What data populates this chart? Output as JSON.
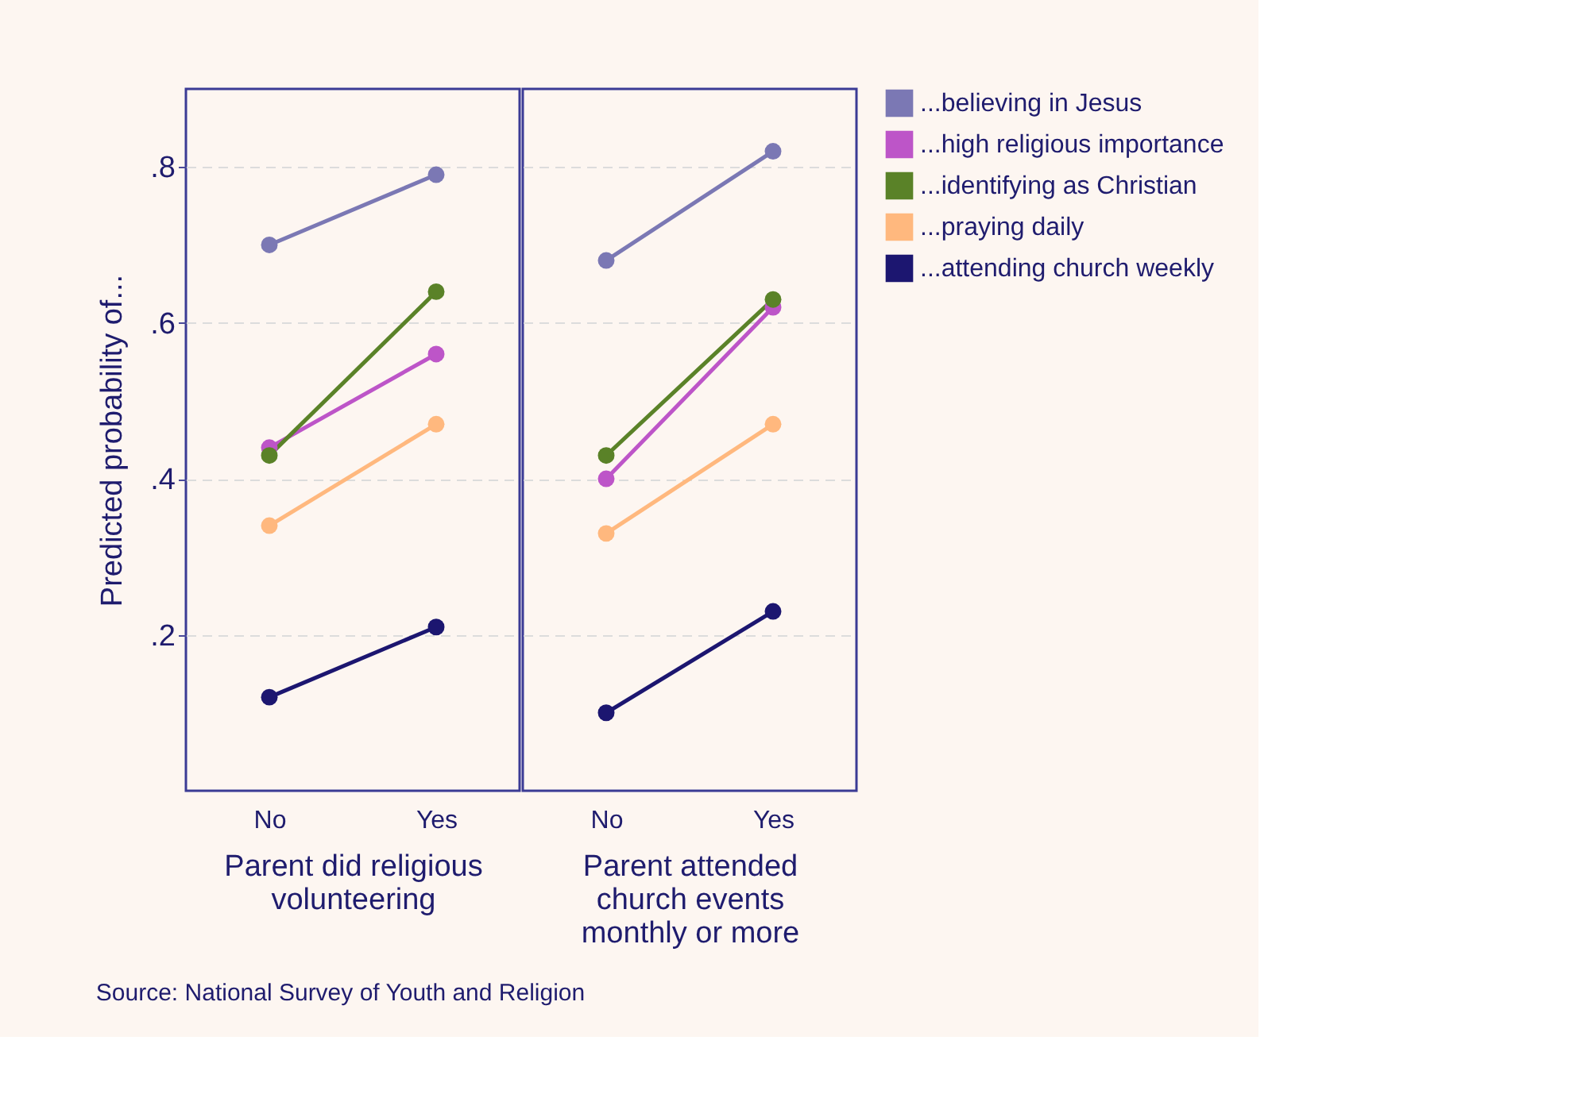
{
  "chart_data": [
    {
      "type": "line",
      "xlabel": "Parent did religious volunteering",
      "ylabel": "Predicted probability of...",
      "categories": [
        "No",
        "Yes"
      ],
      "series": [
        {
          "color": "#7b78b4",
          "values": [
            0.7,
            0.79
          ]
        },
        {
          "color": "#bd55c8",
          "values": [
            0.44,
            0.56
          ]
        },
        {
          "color": "#5a8228",
          "values": [
            0.43,
            0.64
          ]
        },
        {
          "color": "#ffb87e",
          "values": [
            0.34,
            0.47
          ]
        },
        {
          "color": "#1c1670",
          "values": [
            0.12,
            0.21
          ]
        }
      ],
      "ylim": [
        0,
        0.9
      ],
      "yticks": [
        {
          "value": 0.2,
          "label": ".2"
        },
        {
          "value": 0.4,
          "label": ".4"
        },
        {
          "value": 0.6,
          "label": ".6"
        },
        {
          "value": 0.8,
          "label": ".8"
        }
      ],
      "grid": "y",
      "marker": "circle",
      "line_style": "solid",
      "legend": false,
      "annotations": [
        "Source: National Survey of Youth and Religion"
      ]
    },
    {
      "type": "line",
      "xlabel": "Parent attended church events monthly or more",
      "categories": [
        "No",
        "Yes"
      ],
      "series": [
        {
          "name": "...believing in Jesus",
          "color": "#7b78b4",
          "values": [
            0.68,
            0.82
          ]
        },
        {
          "name": "...high religious importance",
          "color": "#bd55c8",
          "values": [
            0.4,
            0.62
          ]
        },
        {
          "name": "...identifying as Christian",
          "color": "#5a8228",
          "values": [
            0.43,
            0.63
          ]
        },
        {
          "name": "...praying daily",
          "color": "#ffb87e",
          "values": [
            0.33,
            0.47
          ]
        },
        {
          "name": "...attending church weekly",
          "color": "#1c1670",
          "values": [
            0.1,
            0.23
          ]
        }
      ],
      "ylim": [
        0,
        0.9
      ],
      "yticks": [
        0.2,
        0.4,
        0.6,
        0.8
      ],
      "grid": "y",
      "marker": "circle",
      "line_style": "solid",
      "legend": "right",
      "tick_labels": "x"
    }
  ]
}
